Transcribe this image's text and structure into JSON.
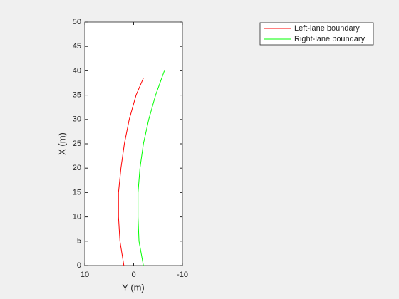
{
  "chart_data": {
    "type": "line",
    "xlabel": "Y (m)",
    "ylabel": "X (m)",
    "xlim": [
      10,
      -10
    ],
    "xticks": [
      10,
      0,
      -10
    ],
    "ylim": [
      0,
      50
    ],
    "yticks": [
      0,
      5,
      10,
      15,
      20,
      25,
      30,
      35,
      40,
      45,
      50
    ],
    "legend": "top-right",
    "grid": false,
    "series": [
      {
        "name": "Left-lane boundary",
        "color": "#ff0000",
        "x": [
          2.0,
          2.8,
          3.1,
          3.1,
          2.6,
          1.9,
          0.9,
          -0.5,
          -2.0
        ],
        "values": [
          0,
          5,
          10,
          15,
          20,
          25,
          30,
          35,
          38.5
        ]
      },
      {
        "name": "Right-lane boundary",
        "color": "#00ff00",
        "x": [
          -2.0,
          -1.1,
          -0.9,
          -0.9,
          -1.3,
          -2.0,
          -3.1,
          -4.5,
          -6.3
        ],
        "values": [
          0,
          5,
          10,
          15,
          20,
          25,
          30,
          35,
          40
        ]
      }
    ]
  }
}
